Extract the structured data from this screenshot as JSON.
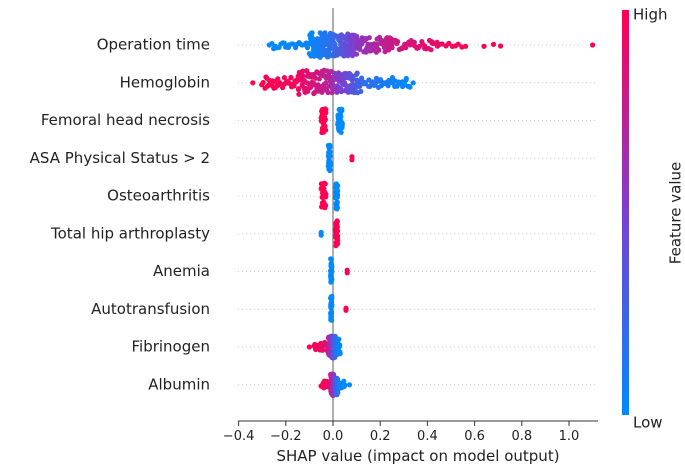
{
  "chart_data": {
    "type": "scatter",
    "subtype": "shap-beeswarm",
    "xlabel": "SHAP value (impact on model output)",
    "xlim": [
      -0.42,
      1.15
    ],
    "xticks": [
      -0.4,
      -0.2,
      0.0,
      0.2,
      0.4,
      0.6,
      0.8,
      1.0
    ],
    "xtick_labels": [
      "−0.4",
      "−0.2",
      "0.0",
      "0.2",
      "0.4",
      "0.6",
      "0.8",
      "1.0"
    ],
    "features": [
      {
        "name": "Operation time",
        "groups": [
          {
            "x_from": -0.26,
            "x_to": -0.1,
            "count": 22,
            "spread": 0.28,
            "fv_from": 0.0,
            "fv_to": 0.05
          },
          {
            "x_from": -0.1,
            "x_to": 0.0,
            "count": 85,
            "spread": 0.95,
            "fv_from": 0.0,
            "fv_to": 0.2
          },
          {
            "x_from": 0.0,
            "x_to": 0.1,
            "count": 80,
            "spread": 0.85,
            "fv_from": 0.2,
            "fv_to": 0.55
          },
          {
            "x_from": 0.1,
            "x_to": 0.25,
            "count": 60,
            "spread": 0.6,
            "fv_from": 0.55,
            "fv_to": 0.8
          },
          {
            "x_from": 0.25,
            "x_to": 0.45,
            "count": 38,
            "spread": 0.36,
            "fv_from": 0.8,
            "fv_to": 0.92
          },
          {
            "x_from": 0.45,
            "x_to": 0.56,
            "count": 9,
            "spread": 0.16,
            "fv_from": 0.92,
            "fv_to": 0.98
          }
        ],
        "points": [
          {
            "x": -0.27,
            "y": 0.0,
            "fv": 0.0
          },
          {
            "x": 0.64,
            "y": 0.1,
            "fv": 1.0
          },
          {
            "x": 0.68,
            "y": -0.05,
            "fv": 1.0
          },
          {
            "x": 0.71,
            "y": 0.08,
            "fv": 1.0
          },
          {
            "x": 1.1,
            "y": 0.0,
            "fv": 1.0
          }
        ]
      },
      {
        "name": "Hemoglobin",
        "groups": [
          {
            "x_from": -0.3,
            "x_to": -0.15,
            "count": 35,
            "spread": 0.45,
            "fv_from": 1.0,
            "fv_to": 0.95
          },
          {
            "x_from": -0.15,
            "x_to": 0.0,
            "count": 85,
            "spread": 0.95,
            "fv_from": 0.95,
            "fv_to": 0.7
          },
          {
            "x_from": 0.0,
            "x_to": 0.12,
            "count": 70,
            "spread": 0.8,
            "fv_from": 0.6,
            "fv_to": 0.25
          },
          {
            "x_from": 0.12,
            "x_to": 0.33,
            "count": 40,
            "spread": 0.4,
            "fv_from": 0.2,
            "fv_to": 0.0
          }
        ],
        "points": [
          {
            "x": -0.34,
            "y": 0.0,
            "fv": 1.0
          },
          {
            "x": 0.34,
            "y": 0.0,
            "fv": 0.0
          }
        ]
      },
      {
        "name": "Femoral head necrosis",
        "groups": [
          {
            "x_from": -0.05,
            "x_to": -0.03,
            "count": 28,
            "spread": 1.0,
            "fv_from": 1.0,
            "fv_to": 1.0
          },
          {
            "x_from": 0.02,
            "x_to": 0.04,
            "count": 28,
            "spread": 1.0,
            "fv_from": 0.0,
            "fv_to": 0.0
          }
        ],
        "points": []
      },
      {
        "name": "ASA Physical Status > 2",
        "groups": [
          {
            "x_from": -0.02,
            "x_to": -0.01,
            "count": 28,
            "spread": 1.0,
            "fv_from": 0.0,
            "fv_to": 0.0
          }
        ],
        "points": [
          {
            "x": 0.08,
            "y": -0.12,
            "fv": 1.0
          },
          {
            "x": 0.08,
            "y": 0.12,
            "fv": 1.0
          }
        ]
      },
      {
        "name": "Osteoarthritis",
        "groups": [
          {
            "x_from": -0.05,
            "x_to": -0.03,
            "count": 26,
            "spread": 1.0,
            "fv_from": 1.0,
            "fv_to": 1.0
          },
          {
            "x_from": 0.01,
            "x_to": 0.02,
            "count": 28,
            "spread": 1.0,
            "fv_from": 0.0,
            "fv_to": 0.0
          }
        ],
        "points": []
      },
      {
        "name": "Total hip arthroplasty",
        "groups": [
          {
            "x_from": 0.01,
            "x_to": 0.02,
            "count": 30,
            "spread": 1.0,
            "fv_from": 1.0,
            "fv_to": 1.0
          }
        ],
        "points": [
          {
            "x": -0.05,
            "y": -0.1,
            "fv": 0.0
          },
          {
            "x": -0.05,
            "y": 0.1,
            "fv": 0.0
          }
        ]
      },
      {
        "name": "Anemia",
        "groups": [
          {
            "x_from": -0.01,
            "x_to": -0.005,
            "count": 28,
            "spread": 1.0,
            "fv_from": 0.0,
            "fv_to": 0.0
          }
        ],
        "points": [
          {
            "x": 0.06,
            "y": -0.1,
            "fv": 1.0
          },
          {
            "x": 0.06,
            "y": 0.1,
            "fv": 1.0
          }
        ]
      },
      {
        "name": "Autotransfusion",
        "groups": [
          {
            "x_from": -0.01,
            "x_to": -0.005,
            "count": 28,
            "spread": 1.0,
            "fv_from": 0.0,
            "fv_to": 0.0
          }
        ],
        "points": [
          {
            "x": 0.055,
            "y": -0.08,
            "fv": 1.0
          },
          {
            "x": 0.055,
            "y": 0.08,
            "fv": 1.0
          }
        ]
      },
      {
        "name": "Fibrinogen",
        "groups": [
          {
            "x_from": -0.08,
            "x_to": -0.02,
            "count": 18,
            "spread": 0.35,
            "fv_from": 1.0,
            "fv_to": 0.85
          },
          {
            "x_from": -0.02,
            "x_to": 0.01,
            "count": 45,
            "spread": 0.85,
            "fv_from": 0.8,
            "fv_to": 0.2
          },
          {
            "x_from": 0.01,
            "x_to": 0.03,
            "count": 30,
            "spread": 0.6,
            "fv_from": 0.2,
            "fv_to": 0.0
          }
        ],
        "points": [
          {
            "x": -0.1,
            "y": 0.0,
            "fv": 1.0
          }
        ]
      },
      {
        "name": "Albumin",
        "groups": [
          {
            "x_from": -0.05,
            "x_to": -0.01,
            "count": 16,
            "spread": 0.35,
            "fv_from": 1.0,
            "fv_to": 0.9
          },
          {
            "x_from": -0.01,
            "x_to": 0.02,
            "count": 45,
            "spread": 0.85,
            "fv_from": 0.85,
            "fv_to": 0.15
          },
          {
            "x_from": 0.02,
            "x_to": 0.05,
            "count": 14,
            "spread": 0.3,
            "fv_from": 0.1,
            "fv_to": 0.0
          }
        ],
        "points": [
          {
            "x": 0.07,
            "y": 0.0,
            "fv": 0.0
          }
        ]
      }
    ],
    "colorbar": {
      "label": "Feature value",
      "high_label": "High",
      "low_label": "Low",
      "low_color": "#008afb",
      "mid_color": "#7c3fd0",
      "high_color": "#ff0052"
    },
    "zero_line_color": "#999999",
    "grid": "dotted-horizontal"
  }
}
